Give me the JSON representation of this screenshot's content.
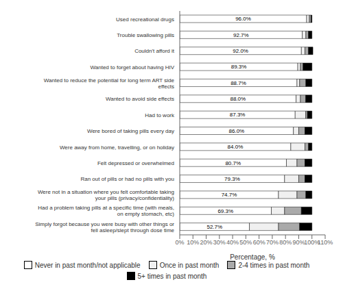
{
  "chart_data": {
    "type": "bar",
    "orientation": "horizontal",
    "stacked": true,
    "grid": false,
    "legend": "bottom",
    "xlabel": "Percentage, %",
    "categories": [
      "Used recreational drugs",
      "Trouble swallowing pills",
      "Couldn't afford it",
      "Wanted to forget about having HIV",
      "Wanted to reduce the potential for long term ART side\neffects",
      "Wanted to avoid side effects",
      "Had to work",
      "Were bored of taking pills every day",
      "Were away from home, travelling, or on holiday",
      "Felt depressed or overwhelmed",
      "Ran out of pills or had no pills with you",
      "Were not in a situation where you felt comfortable taking\nyour pills (privacy/confidentiality)",
      "Had a problem taking pills at a specific time (with meals,\non empty stomach, etc)",
      "Simply forgot because you were busy with other things or\nfell asleep/slept through dose time"
    ],
    "series": [
      {
        "name": "Never in past month/not applicable",
        "color": "#ffffff",
        "values": [
          96.0,
          92.7,
          92.0,
          89.3,
          88.7,
          88.0,
          87.3,
          86.0,
          84.0,
          80.7,
          79.3,
          74.7,
          69.3,
          52.7
        ],
        "data_labels": true,
        "value_labels": [
          "96.0%",
          "92.7%",
          "92.0%",
          "89.3%",
          "88.7%",
          "88.0%",
          "87.3%",
          "86.0%",
          "84.0%",
          "80.7%",
          "79.3%",
          "74.7%",
          "69.3%",
          "52.7%"
        ]
      },
      {
        "name": "Once in past month",
        "color": "#f0f0f0",
        "values": [
          2.0,
          2.7,
          2.7,
          2.0,
          2.0,
          3.3,
          8.0,
          4.0,
          10.7,
          8.0,
          10.7,
          14.0,
          10.0,
          22.0
        ]
      },
      {
        "name": "2-4 times in past month",
        "color": "#aaaaaa",
        "values": [
          1.3,
          2.0,
          2.7,
          2.0,
          4.7,
          4.0,
          1.3,
          4.7,
          2.7,
          6.0,
          4.7,
          6.7,
          12.7,
          16.0
        ]
      },
      {
        "name": "5+ times in past month",
        "color": "#000000",
        "values": [
          0.7,
          2.6,
          3.3,
          6.7,
          4.6,
          4.7,
          3.4,
          5.3,
          2.6,
          5.3,
          5.3,
          4.6,
          8.0,
          9.3
        ]
      }
    ],
    "xlim": [
      0,
      110
    ],
    "xticks": [
      {
        "value": 0,
        "label": "0%"
      },
      {
        "value": 10,
        "label": "10%"
      },
      {
        "value": 20,
        "label": "20%"
      },
      {
        "value": 30,
        "label": "30%"
      },
      {
        "value": 40,
        "label": "40%"
      },
      {
        "value": 50,
        "label": "50%"
      },
      {
        "value": 60,
        "label": "60%"
      },
      {
        "value": 70,
        "label": "70%"
      },
      {
        "value": 80,
        "label": "80%"
      },
      {
        "value": 90,
        "label": "90%"
      },
      {
        "value": 100,
        "label": "100%"
      },
      {
        "value": 110,
        "label": "110%"
      }
    ]
  }
}
